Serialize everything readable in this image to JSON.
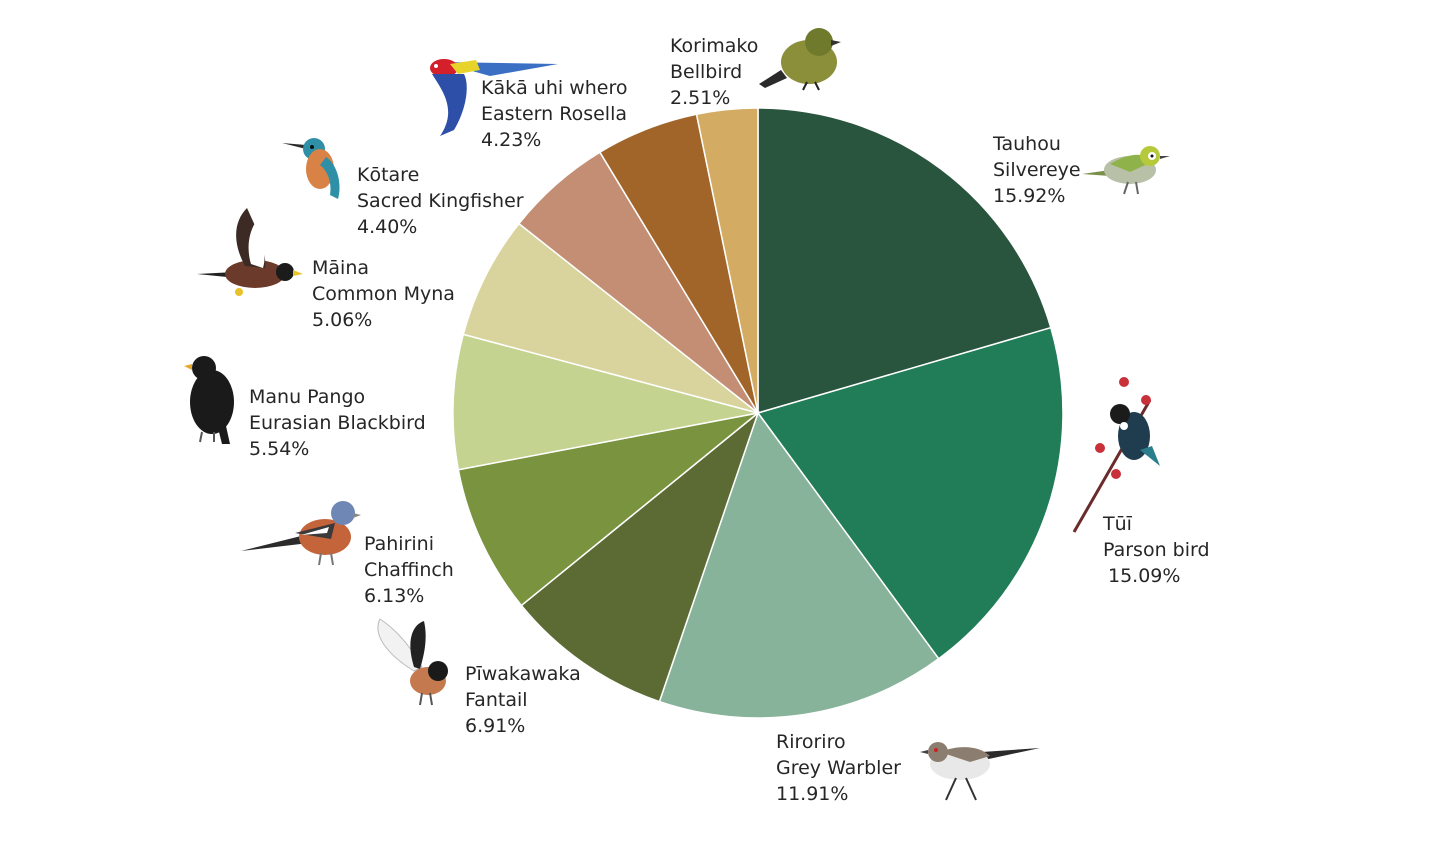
{
  "chart_data": {
    "type": "pie",
    "start": "12 o'clock",
    "direction": "clockwise",
    "slices": [
      {
        "maori": "Tauhou",
        "english": "Silvereye",
        "pct_label": "15.92%",
        "value": 15.92,
        "color": "#29543d",
        "icon": "silvereye-bird-icon"
      },
      {
        "maori": "Tūī",
        "english": "Parson bird",
        "pct_label": "15.09%",
        "value": 15.09,
        "color": "#217c58",
        "icon": "tui-bird-icon"
      },
      {
        "maori": "Riroriro",
        "english": "Grey Warbler",
        "pct_label": "11.91%",
        "value": 11.91,
        "color": "#88b39b",
        "icon": "grey-warbler-bird-icon"
      },
      {
        "maori": "Pīwakawaka",
        "english": "Fantail",
        "pct_label": "6.91%",
        "value": 6.91,
        "color": "#5c6b34",
        "icon": "fantail-bird-icon"
      },
      {
        "maori": "Pahirini",
        "english": "Chaffinch",
        "pct_label": "6.13%",
        "value": 6.13,
        "color": "#7a933e",
        "icon": "chaffinch-bird-icon"
      },
      {
        "maori": "Manu Pango",
        "english": "Eurasian Blackbird",
        "pct_label": "5.54%",
        "value": 5.54,
        "color": "#c4d38f",
        "icon": "blackbird-icon"
      },
      {
        "maori": "Māina",
        "english": "Common Myna",
        "pct_label": "5.06%",
        "value": 5.06,
        "color": "#d9d49d",
        "icon": "myna-bird-icon"
      },
      {
        "maori": "Kōtare",
        "english": "Sacred Kingfisher",
        "pct_label": "4.40%",
        "value": 4.4,
        "color": "#c38e74",
        "icon": "kingfisher-bird-icon"
      },
      {
        "maori": "Kākā uhi whero",
        "english": "Eastern Rosella",
        "pct_label": "4.23%",
        "value": 4.23,
        "color": "#a1652a",
        "icon": "rosella-bird-icon"
      },
      {
        "maori": "Korimako",
        "english": "Bellbird",
        "pct_label": "2.51%",
        "value": 2.51,
        "color": "#d4ab62",
        "icon": "bellbird-icon"
      }
    ]
  }
}
